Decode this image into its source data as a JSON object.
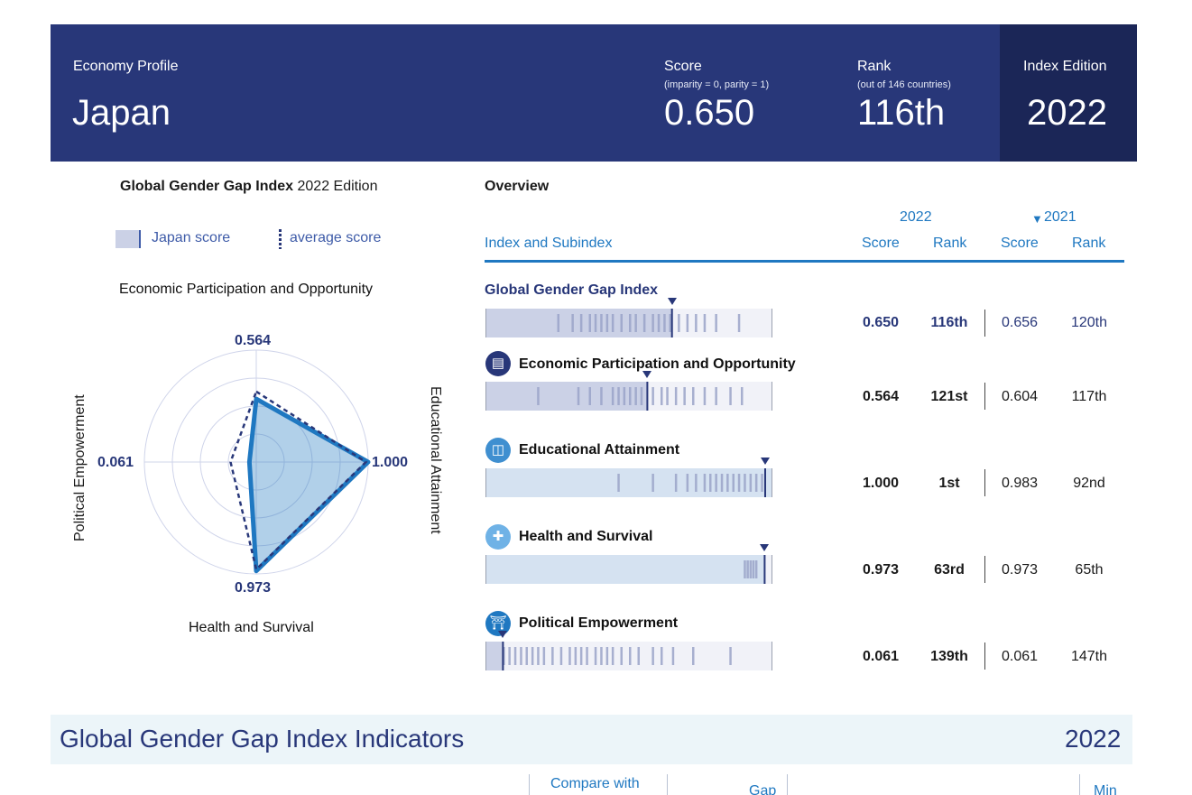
{
  "header": {
    "profile_label": "Economy Profile",
    "country": "Japan",
    "score_label": "Score",
    "score_note": "(imparity = 0, parity = 1)",
    "score_value": "0.650",
    "rank_label": "Rank",
    "rank_note": "(out of 146 countries)",
    "rank_value": "116th",
    "edition_label": "Index Edition",
    "edition_value": "2022",
    "colors": {
      "band": "#283779",
      "edition_box": "#1b2657"
    }
  },
  "radar": {
    "title_bold": "Global Gender Gap Index",
    "title_rest": "2022 Edition",
    "legend_country": "Japan score",
    "legend_average": "average score",
    "label_top": "Economic Participation and Opportunity",
    "label_right": "Educational Attainment",
    "label_bottom": "Health and Survival",
    "label_left": "Political Empowerment",
    "value_top": "0.564",
    "value_right": "1.000",
    "value_bottom": "0.973",
    "value_left": "0.061"
  },
  "overview": {
    "title": "Overview",
    "col_index": "Index and Subindex",
    "year_current": "2022",
    "year_previous": "2021",
    "previous_marker": "▼",
    "col_score": "Score",
    "col_rank": "Rank",
    "rows": [
      {
        "name": "Global Gender Gap Index",
        "icon": "",
        "score": "0.650",
        "rank": "116th",
        "prev_score": "0.656",
        "prev_rank": "120th"
      },
      {
        "name": "Economic Participation and Opportunity",
        "icon": "briefcase-icon",
        "score": "0.564",
        "rank": "121st",
        "prev_score": "0.604",
        "prev_rank": "117th"
      },
      {
        "name": "Educational Attainment",
        "icon": "book-icon",
        "score": "1.000",
        "rank": "1st",
        "prev_score": "0.983",
        "prev_rank": "92nd"
      },
      {
        "name": "Health and Survival",
        "icon": "medical-cross-icon",
        "score": "0.973",
        "rank": "63rd",
        "prev_score": "0.973",
        "prev_rank": "65th"
      },
      {
        "name": "Political Empowerment",
        "icon": "government-building-icon",
        "score": "0.061",
        "rank": "139th",
        "prev_score": "0.061",
        "prev_rank": "147th"
      }
    ]
  },
  "indicators": {
    "title": "Global Gender Gap Index Indicators",
    "year": "2022",
    "col_compare": "Compare with",
    "col_gap": "Gap",
    "col_min": "Min"
  },
  "chart_data": [
    {
      "type": "radar",
      "title": "Global Gender Gap Index 2022 Edition",
      "categories": [
        "Economic Participation and Opportunity",
        "Educational Attainment",
        "Health and Survival",
        "Political Empowerment"
      ],
      "series": [
        {
          "name": "Japan score",
          "values": [
            0.564,
            1.0,
            0.973,
            0.061
          ],
          "color": "#1f78c1"
        },
        {
          "name": "average score",
          "values": [
            0.63,
            0.98,
            0.96,
            0.23
          ],
          "color": "#283779"
        }
      ],
      "range": [
        0,
        1
      ]
    },
    {
      "type": "bar",
      "title": "Overview",
      "categories": [
        "Global Gender Gap Index",
        "Economic Participation and Opportunity",
        "Educational Attainment",
        "Health and Survival",
        "Political Empowerment"
      ],
      "values": [
        0.65,
        0.564,
        1.0,
        0.973,
        0.061
      ],
      "range": [
        0,
        1
      ]
    }
  ]
}
